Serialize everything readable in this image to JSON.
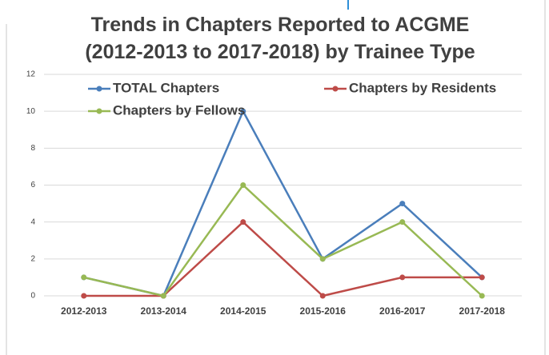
{
  "chart_data": {
    "type": "line",
    "title": "Trends in Chapters Reported to ACGME (2012-2013 to 2017-2018) by Trainee Type",
    "categories": [
      "2012-2013",
      "2013-2014",
      "2014-2015",
      "2015-2016",
      "2016-2017",
      "2017-2018"
    ],
    "series": [
      {
        "name": "TOTAL Chapters",
        "color": "#4a7ebb",
        "values": [
          1,
          0,
          10,
          2,
          5,
          1
        ]
      },
      {
        "name": "Chapters by Residents",
        "color": "#be4b48",
        "values": [
          0,
          0,
          4,
          0,
          1,
          1
        ]
      },
      {
        "name": "Chapters by Fellows",
        "color": "#98b954",
        "values": [
          1,
          0,
          6,
          2,
          4,
          0
        ]
      }
    ],
    "ylim": [
      0,
      12
    ],
    "yticks": [
      0,
      2,
      4,
      6,
      8,
      10,
      12
    ],
    "grid": true
  }
}
